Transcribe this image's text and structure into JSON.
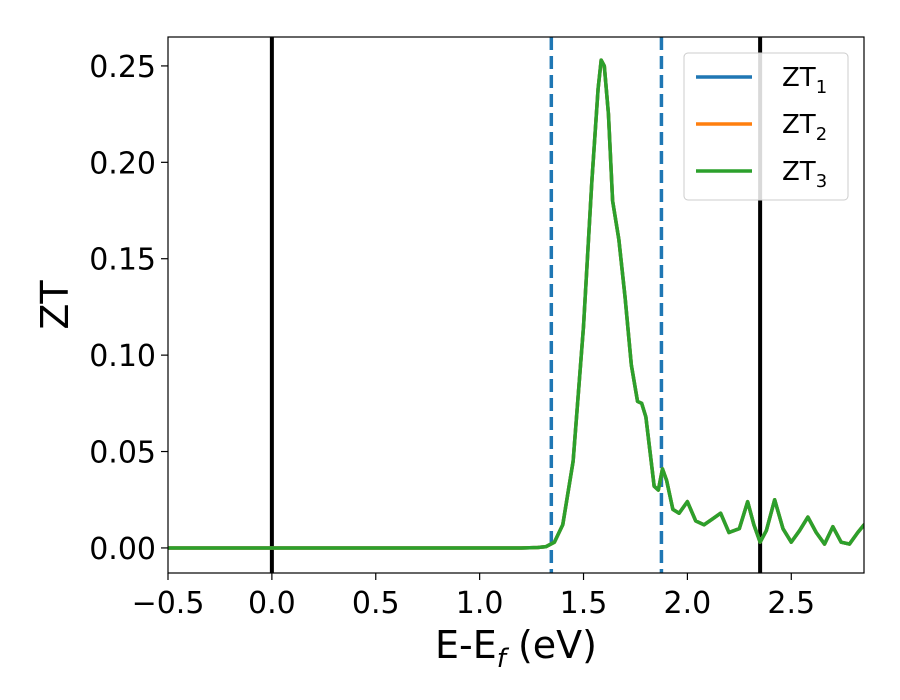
{
  "chart_data": {
    "type": "line",
    "xlabel": "E-E",
    "xlabel_subscript": "f",
    "xlabel_unit": " (eV)",
    "ylabel": "ZT",
    "xlim": [
      -0.5,
      2.85
    ],
    "ylim": [
      -0.013,
      0.265
    ],
    "xticks": [
      -0.5,
      0.0,
      0.5,
      1.0,
      1.5,
      2.0,
      2.5
    ],
    "xtick_labels": [
      "−0.5",
      "0.0",
      "0.5",
      "1.0",
      "1.5",
      "2.0",
      "2.5"
    ],
    "yticks": [
      0.0,
      0.05,
      0.1,
      0.15,
      0.2,
      0.25
    ],
    "ytick_labels": [
      "0.00",
      "0.05",
      "0.10",
      "0.15",
      "0.20",
      "0.25"
    ],
    "grid": false,
    "legend_position": "top-right",
    "vertical_lines": [
      {
        "x": 0.0,
        "style": "solid",
        "color": "#000000"
      },
      {
        "x": 2.35,
        "style": "solid",
        "color": "#000000"
      },
      {
        "x": 1.345,
        "style": "dashed",
        "color": "#1f77b4"
      },
      {
        "x": 1.875,
        "style": "dashed",
        "color": "#1f77b4"
      }
    ],
    "x": [
      -0.5,
      0.0,
      0.5,
      1.0,
      1.2,
      1.28,
      1.32,
      1.36,
      1.4,
      1.45,
      1.5,
      1.54,
      1.57,
      1.585,
      1.6,
      1.62,
      1.64,
      1.67,
      1.7,
      1.73,
      1.76,
      1.78,
      1.8,
      1.82,
      1.84,
      1.86,
      1.88,
      1.9,
      1.93,
      1.96,
      2.0,
      2.04,
      2.08,
      2.12,
      2.16,
      2.2,
      2.25,
      2.29,
      2.32,
      2.35,
      2.38,
      2.42,
      2.46,
      2.5,
      2.54,
      2.58,
      2.62,
      2.66,
      2.7,
      2.74,
      2.78,
      2.82,
      2.85
    ],
    "series": [
      {
        "name": "ZT",
        "name_subscript": "1",
        "color": "#1f77b4",
        "values": [
          0,
          0,
          0,
          0,
          0,
          0.0002,
          0.0007,
          0.003,
          0.012,
          0.045,
          0.115,
          0.19,
          0.238,
          0.253,
          0.25,
          0.225,
          0.18,
          0.16,
          0.13,
          0.095,
          0.076,
          0.075,
          0.068,
          0.05,
          0.032,
          0.03,
          0.041,
          0.035,
          0.02,
          0.018,
          0.024,
          0.014,
          0.012,
          0.015,
          0.018,
          0.008,
          0.01,
          0.024,
          0.012,
          0.003,
          0.009,
          0.025,
          0.01,
          0.003,
          0.009,
          0.016,
          0.008,
          0.002,
          0.011,
          0.003,
          0.002,
          0.008,
          0.012
        ]
      },
      {
        "name": "ZT",
        "name_subscript": "2",
        "color": "#ff7f0e",
        "values": [
          0,
          0,
          0,
          0,
          0,
          0.0002,
          0.0007,
          0.003,
          0.012,
          0.045,
          0.115,
          0.19,
          0.238,
          0.253,
          0.25,
          0.225,
          0.18,
          0.16,
          0.13,
          0.095,
          0.076,
          0.075,
          0.068,
          0.05,
          0.032,
          0.03,
          0.041,
          0.035,
          0.02,
          0.018,
          0.024,
          0.014,
          0.012,
          0.015,
          0.018,
          0.008,
          0.01,
          0.024,
          0.012,
          0.003,
          0.009,
          0.025,
          0.01,
          0.003,
          0.009,
          0.016,
          0.008,
          0.002,
          0.011,
          0.003,
          0.002,
          0.008,
          0.012
        ]
      },
      {
        "name": "ZT",
        "name_subscript": "3",
        "color": "#2ca02c",
        "values": [
          0,
          0,
          0,
          0,
          0,
          0.0002,
          0.0007,
          0.003,
          0.012,
          0.045,
          0.115,
          0.19,
          0.238,
          0.253,
          0.25,
          0.225,
          0.18,
          0.16,
          0.13,
          0.095,
          0.076,
          0.075,
          0.068,
          0.05,
          0.032,
          0.03,
          0.041,
          0.035,
          0.02,
          0.018,
          0.024,
          0.014,
          0.012,
          0.015,
          0.018,
          0.008,
          0.01,
          0.024,
          0.012,
          0.003,
          0.009,
          0.025,
          0.01,
          0.003,
          0.009,
          0.016,
          0.008,
          0.002,
          0.011,
          0.003,
          0.002,
          0.008,
          0.012
        ]
      }
    ]
  }
}
